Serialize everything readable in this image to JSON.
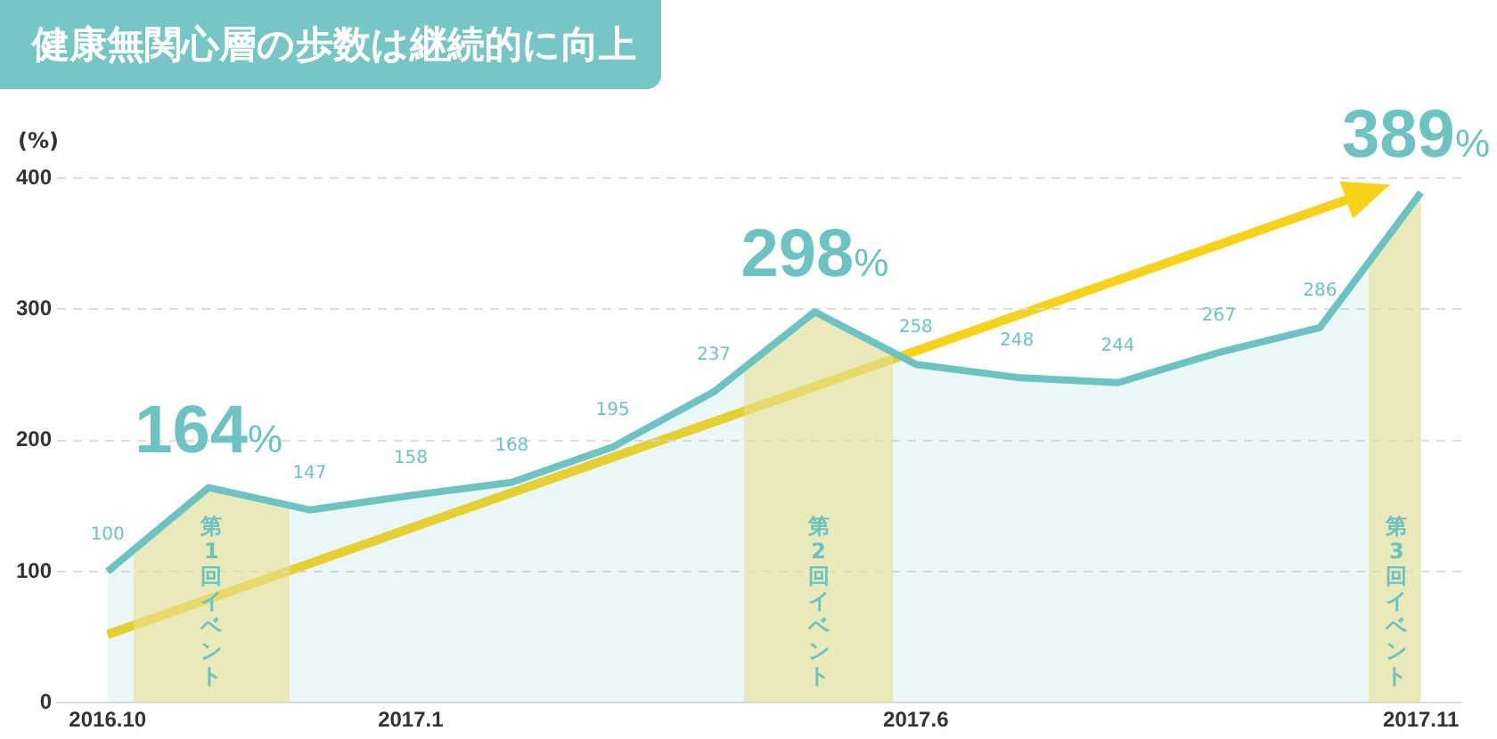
{
  "chart_data": {
    "type": "area",
    "title": "健康無関心層の歩数は継続的に向上",
    "ylabel": "(%)",
    "x": [
      "2016-10",
      "2016-11",
      "2016-12",
      "2017-01",
      "2017-02",
      "2017-03",
      "2017-04",
      "2017-05",
      "2017-06",
      "2017-07",
      "2017-08",
      "2017-09",
      "2017-10",
      "2017-11"
    ],
    "series": [
      {
        "color": "#6cc3c1",
        "values": [
          100,
          164,
          147,
          158,
          168,
          195,
          237,
          298,
          258,
          248,
          244,
          267,
          286,
          389
        ],
        "value_labels": [
          "100",
          "164%",
          "147",
          "158",
          "168",
          "195",
          "237",
          "298%",
          "258",
          "248",
          "244",
          "267",
          "286",
          "389%"
        ]
      }
    ],
    "xlim": [
      "2016-09-16",
      "2017-11-13"
    ],
    "xticks": [
      {
        "value": "2016-10",
        "label": "2016.10"
      },
      {
        "value": "2017-01",
        "label": "2017.1"
      },
      {
        "value": "2017-06",
        "label": "2017.6"
      },
      {
        "value": "2017-11",
        "label": "2017.11"
      }
    ],
    "ylim": [
      0,
      400
    ],
    "yticks": [
      0,
      100,
      200,
      300,
      400
    ],
    "bands": [
      {
        "axis": "x",
        "from": "2016-10-09",
        "to": "2016-11-25",
        "label": "第1回イベント",
        "color": "#fde58a"
      },
      {
        "axis": "x",
        "from": "2017-04-10",
        "to": "2017-05-25",
        "label": "第2回イベント",
        "color": "#fde58a"
      },
      {
        "axis": "x",
        "from": "2017-10-16",
        "to": "2017-11-02",
        "label": "第3回イベント",
        "color": "#fde58a"
      }
    ],
    "grid": "y",
    "legend": false,
    "marker": "none",
    "line_style": "solid"
  }
}
